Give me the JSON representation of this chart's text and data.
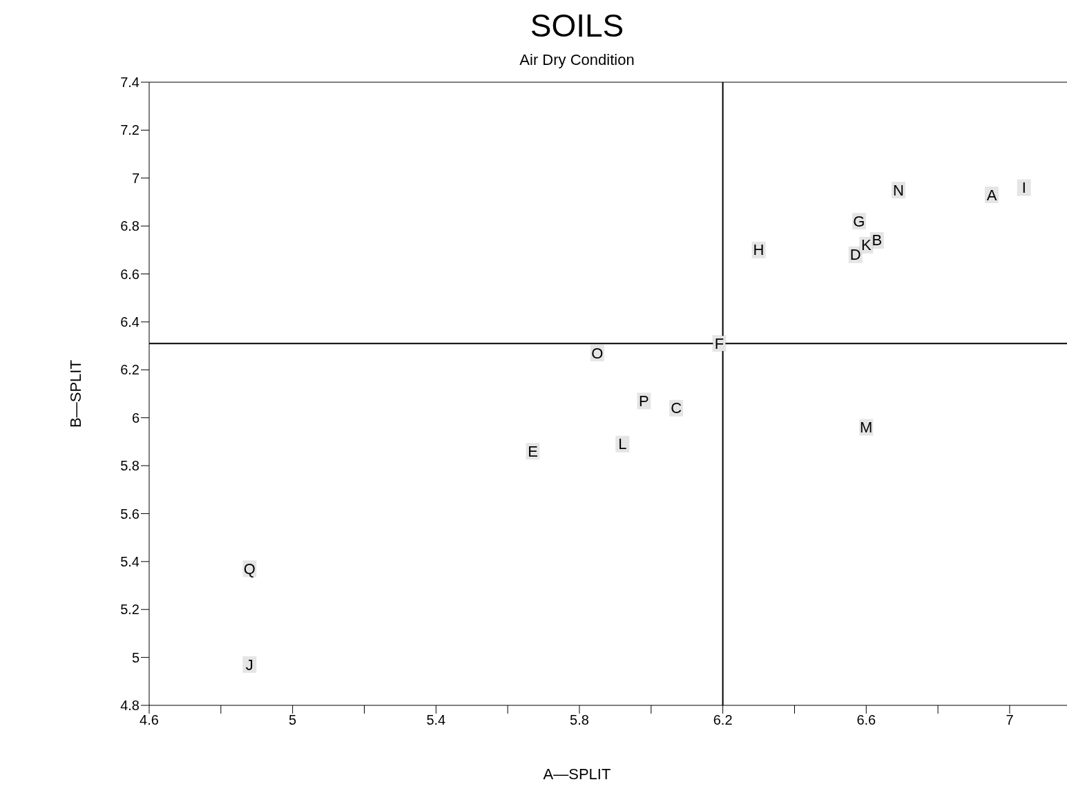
{
  "chart_data": {
    "type": "scatter",
    "title": "SOILS",
    "subtitle": "Air Dry Condition",
    "xlabel": "A—SPLIT",
    "ylabel": "B—SPLIT",
    "x": [
      6.95,
      6.63,
      6.07,
      6.57,
      5.67,
      6.19,
      6.58,
      6.3,
      7.04,
      4.88,
      6.6,
      5.92,
      6.6,
      6.69,
      5.85,
      5.98,
      4.88
    ],
    "series": [
      {
        "color": "#000000",
        "values": [
          6.93,
          6.74,
          6.04,
          6.68,
          5.86,
          6.31,
          6.82,
          6.7,
          6.96,
          4.97,
          6.72,
          5.89,
          5.96,
          6.95,
          6.27,
          6.07,
          5.37
        ],
        "value_labels": [
          "A",
          "B",
          "C",
          "D",
          "E",
          "F",
          "G",
          "H",
          "I",
          "J",
          "K",
          "L",
          "M",
          "N",
          "O",
          "P",
          "Q"
        ]
      }
    ],
    "marker": "square",
    "grid": false,
    "legend": false,
    "xlim": [
      4.6,
      7.16
    ],
    "xticks": [
      4.6,
      {
        "value": 4.8,
        "label": null
      },
      5,
      {
        "value": 5.2,
        "label": null
      },
      5.4,
      {
        "value": 5.6,
        "label": null
      },
      5.8,
      {
        "value": 6,
        "label": null
      },
      6.2,
      {
        "value": 6.4,
        "label": null
      },
      6.6,
      {
        "value": 6.8,
        "label": null
      },
      7
    ],
    "ylim": [
      4.8,
      7.4
    ],
    "yticks": [
      4.8,
      5,
      5.2,
      5.4,
      5.6,
      5.8,
      6,
      6.2,
      6.4,
      6.6,
      6.8,
      7,
      7.2,
      7.4
    ],
    "ref_lines": [
      {
        "axis": "x",
        "value": 6.2,
        "color": "#000000"
      },
      {
        "axis": "y",
        "value": 6.31,
        "color": "#000000"
      }
    ]
  }
}
